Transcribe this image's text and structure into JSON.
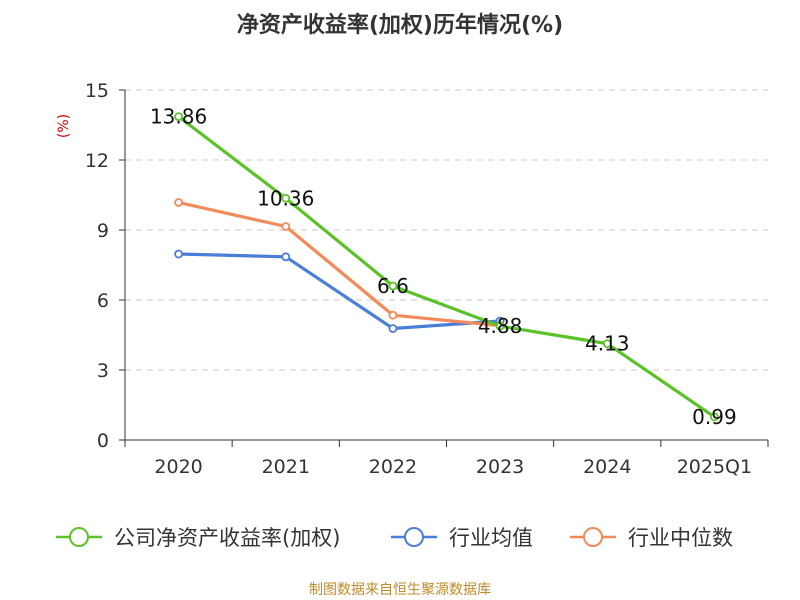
{
  "chart_data": {
    "type": "line",
    "title": "净资产收益率(加权)历年情况(%)",
    "ylabel": "(%)",
    "xlabel": "",
    "categories": [
      "2020",
      "2021",
      "2022",
      "2023",
      "2024",
      "2025Q1"
    ],
    "ylim": [
      0,
      15
    ],
    "yticks": [
      0,
      3,
      6,
      9,
      12,
      15
    ],
    "grid": true,
    "legend_position": "bottom",
    "series": [
      {
        "name": "公司净资产收益率(加权)",
        "color": "#5cc22a",
        "values": [
          13.86,
          10.36,
          6.6,
          4.88,
          4.13,
          0.99
        ],
        "data_labels": [
          "13.86",
          "10.36",
          "6.6",
          "4.88",
          "4.13",
          "0.99"
        ]
      },
      {
        "name": "行业均值",
        "color": "#4a7fd8",
        "values": [
          7.97,
          7.85,
          4.78,
          5.1,
          null,
          null
        ]
      },
      {
        "name": "行业中位数",
        "color": "#f28a5a",
        "values": [
          10.18,
          9.15,
          5.35,
          4.9,
          null,
          null
        ]
      }
    ],
    "source": "制图数据来自恒生聚源数据库"
  }
}
